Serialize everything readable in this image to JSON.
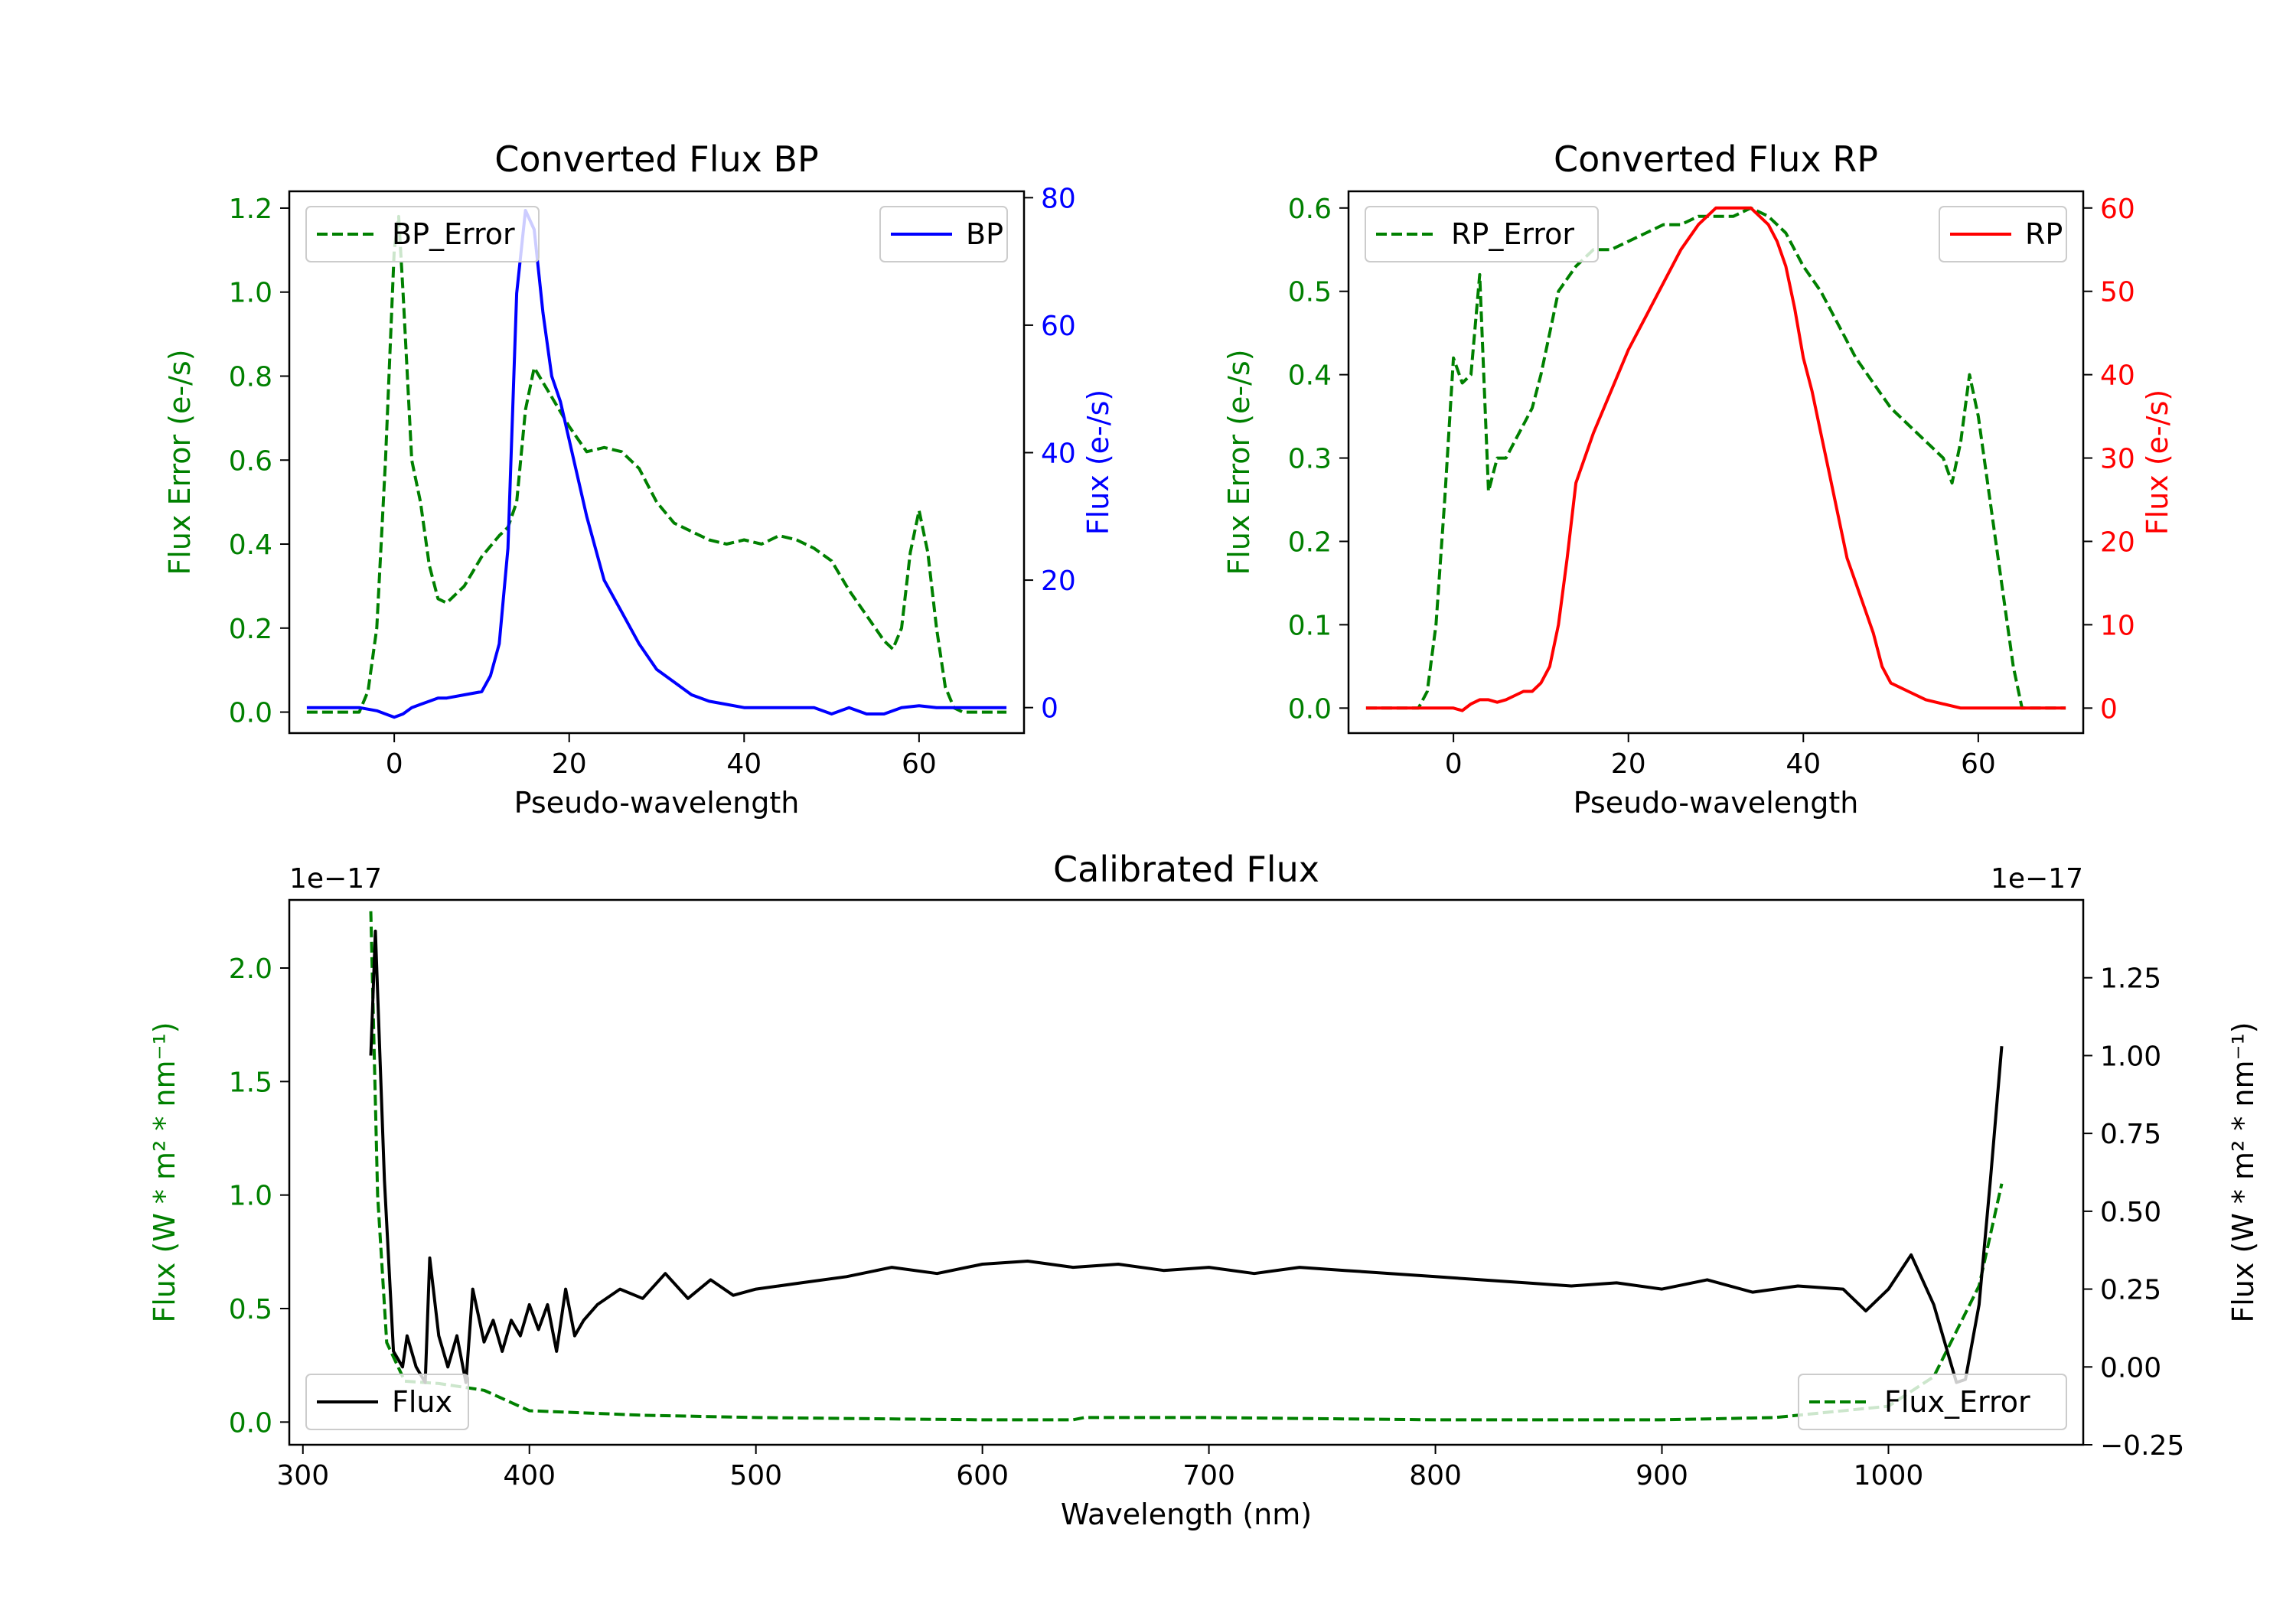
{
  "chart_data": [
    {
      "id": "bp",
      "type": "line",
      "title": "Converted Flux BP",
      "xlabel": "Pseudo-wavelength",
      "xlim": [
        -12,
        72
      ],
      "xticks": [
        0,
        20,
        40,
        60
      ],
      "xtick_labels": [
        "0",
        "20",
        "40",
        "60"
      ],
      "left_axis": {
        "label": "Flux Error (e-/s)",
        "color": "#008000",
        "ylim": [
          -0.05,
          1.24
        ],
        "ticks": [
          0.0,
          0.2,
          0.4,
          0.6,
          0.8,
          1.0,
          1.2
        ],
        "tick_labels": [
          "0.0",
          "0.2",
          "0.4",
          "0.6",
          "0.8",
          "1.0",
          "1.2"
        ]
      },
      "right_axis": {
        "label": "Flux (e-/s)",
        "color": "#0000ff",
        "ylim": [
          -4,
          81
        ],
        "ticks": [
          0,
          20,
          40,
          60,
          80
        ],
        "tick_labels": [
          "0",
          "20",
          "40",
          "60",
          "80"
        ]
      },
      "series": [
        {
          "name": "BP_Error",
          "axis": "left",
          "color": "#008000",
          "style": "dashed",
          "x": [
            -10,
            -6,
            -4,
            -3,
            -2,
            -1,
            0,
            0.5,
            1,
            2,
            3,
            4,
            5,
            6,
            7,
            8,
            10,
            12,
            13,
            14,
            15,
            16,
            18,
            20,
            22,
            24,
            26,
            28,
            30,
            32,
            34,
            36,
            38,
            40,
            42,
            44,
            46,
            48,
            50,
            52,
            54,
            56,
            57,
            58,
            59,
            60,
            61,
            62,
            63,
            64,
            65,
            70
          ],
          "y": [
            0,
            0,
            0,
            0.05,
            0.2,
            0.6,
            1.1,
            1.18,
            1.0,
            0.6,
            0.5,
            0.35,
            0.27,
            0.26,
            0.28,
            0.3,
            0.37,
            0.42,
            0.44,
            0.5,
            0.72,
            0.82,
            0.75,
            0.68,
            0.62,
            0.63,
            0.62,
            0.58,
            0.5,
            0.45,
            0.43,
            0.41,
            0.4,
            0.41,
            0.4,
            0.42,
            0.41,
            0.39,
            0.36,
            0.29,
            0.23,
            0.17,
            0.15,
            0.2,
            0.38,
            0.48,
            0.38,
            0.2,
            0.06,
            0.01,
            0,
            0
          ]
        },
        {
          "name": "BP",
          "axis": "right",
          "color": "#0000ff",
          "style": "solid",
          "x": [
            -10,
            -4,
            -2,
            0,
            1,
            2,
            3,
            4,
            5,
            6,
            8,
            10,
            11,
            12,
            13,
            14,
            15,
            16,
            17,
            18,
            19,
            20,
            22,
            24,
            26,
            28,
            30,
            32,
            34,
            36,
            38,
            40,
            42,
            44,
            46,
            48,
            50,
            52,
            54,
            56,
            58,
            60,
            62,
            65,
            70
          ],
          "y": [
            0,
            0,
            -0.5,
            -1.5,
            -1,
            0,
            0.5,
            1,
            1.5,
            1.5,
            2,
            2.5,
            5,
            10,
            25,
            65,
            78,
            75,
            62,
            52,
            48,
            42,
            30,
            20,
            15,
            10,
            6,
            4,
            2,
            1,
            0.5,
            0,
            0,
            0,
            0,
            0,
            -1,
            0,
            -1,
            -1,
            0,
            0.3,
            0,
            0,
            0
          ]
        }
      ],
      "legends": [
        {
          "position": "upper-left",
          "label": "BP_Error",
          "color": "#008000",
          "style": "dashed"
        },
        {
          "position": "upper-right",
          "label": "BP",
          "color": "#0000ff",
          "style": "solid"
        }
      ]
    },
    {
      "id": "rp",
      "type": "line",
      "title": "Converted Flux RP",
      "xlabel": "Pseudo-wavelength",
      "xlim": [
        -12,
        72
      ],
      "xticks": [
        0,
        20,
        40,
        60
      ],
      "xtick_labels": [
        "0",
        "20",
        "40",
        "60"
      ],
      "left_axis": {
        "label": "Flux Error (e-/s)",
        "color": "#008000",
        "ylim": [
          -0.03,
          0.62
        ],
        "ticks": [
          0.0,
          0.1,
          0.2,
          0.3,
          0.4,
          0.5,
          0.6
        ],
        "tick_labels": [
          "0.0",
          "0.1",
          "0.2",
          "0.3",
          "0.4",
          "0.5",
          "0.6"
        ]
      },
      "right_axis": {
        "label": "Flux (e-/s)",
        "color": "#ff0000",
        "ylim": [
          -3,
          62
        ],
        "ticks": [
          0,
          10,
          20,
          30,
          40,
          50,
          60
        ],
        "tick_labels": [
          "0",
          "10",
          "20",
          "30",
          "40",
          "50",
          "60"
        ]
      },
      "series": [
        {
          "name": "RP_Error",
          "axis": "left",
          "color": "#008000",
          "style": "dashed",
          "x": [
            -10,
            -4,
            -3,
            -2,
            -1,
            0,
            1,
            2,
            3,
            4,
            5,
            6,
            7,
            8,
            9,
            10,
            11,
            12,
            14,
            16,
            18,
            20,
            22,
            24,
            26,
            28,
            30,
            32,
            34,
            36,
            38,
            40,
            42,
            44,
            46,
            48,
            50,
            52,
            54,
            56,
            57,
            58,
            59,
            60,
            62,
            64,
            65,
            70
          ],
          "y": [
            0,
            0,
            0.02,
            0.1,
            0.25,
            0.42,
            0.39,
            0.4,
            0.52,
            0.26,
            0.3,
            0.3,
            0.32,
            0.34,
            0.36,
            0.4,
            0.45,
            0.5,
            0.53,
            0.55,
            0.55,
            0.56,
            0.57,
            0.58,
            0.58,
            0.59,
            0.59,
            0.59,
            0.6,
            0.59,
            0.57,
            0.53,
            0.5,
            0.46,
            0.42,
            0.39,
            0.36,
            0.34,
            0.32,
            0.3,
            0.27,
            0.32,
            0.4,
            0.35,
            0.2,
            0.05,
            0,
            0
          ],
          "y_note": "values approx"
        },
        {
          "name": "RP",
          "axis": "right",
          "color": "#ff0000",
          "style": "solid",
          "x": [
            -10,
            -4,
            0,
            1,
            2,
            3,
            4,
            5,
            6,
            7,
            8,
            9,
            10,
            11,
            12,
            13,
            14,
            16,
            18,
            20,
            22,
            24,
            26,
            28,
            30,
            32,
            34,
            36,
            37,
            38,
            39,
            40,
            41,
            42,
            43,
            44,
            45,
            46,
            47,
            48,
            49,
            50,
            52,
            54,
            56,
            58,
            60,
            62,
            65,
            70
          ],
          "y": [
            0,
            0,
            0,
            -0.3,
            0.5,
            1,
            1,
            0.7,
            1,
            1.5,
            2,
            2,
            3,
            5,
            10,
            18,
            27,
            33,
            38,
            43,
            47,
            51,
            55,
            58,
            60,
            60,
            60,
            58,
            56,
            53,
            48,
            42,
            38,
            33,
            28,
            23,
            18,
            15,
            12,
            9,
            5,
            3,
            2,
            1,
            0.5,
            0,
            0,
            0,
            0,
            0
          ]
        }
      ],
      "legends": [
        {
          "position": "upper-left",
          "label": "RP_Error",
          "color": "#008000",
          "style": "dashed"
        },
        {
          "position": "upper-right",
          "label": "RP",
          "color": "#ff0000",
          "style": "solid"
        }
      ]
    },
    {
      "id": "cal",
      "type": "line",
      "title": "Calibrated Flux",
      "xlabel": "Wavelength (nm)",
      "xlim": [
        294,
        1086
      ],
      "xticks": [
        300,
        400,
        500,
        600,
        700,
        800,
        900,
        1000
      ],
      "xtick_labels": [
        "300",
        "400",
        "500",
        "600",
        "700",
        "800",
        "900",
        "1000"
      ],
      "left_axis": {
        "label": "Flux (W * m² * nm⁻¹)",
        "color": "#008000",
        "offset_text": "1e−17",
        "ylim": [
          -0.1,
          2.3
        ],
        "ticks": [
          0.0,
          0.5,
          1.0,
          1.5,
          2.0
        ],
        "tick_labels": [
          "0.0",
          "0.5",
          "1.0",
          "1.5",
          "2.0"
        ]
      },
      "right_axis": {
        "label": "Flux (W * m² * nm⁻¹)",
        "color": "#000000",
        "offset_text": "1e−17",
        "ylim": [
          -0.25,
          1.5
        ],
        "ticks": [
          -0.25,
          0.0,
          0.25,
          0.5,
          0.75,
          1.0,
          1.25
        ],
        "tick_labels": [
          "−0.25",
          "0.00",
          "0.25",
          "0.50",
          "0.75",
          "1.00",
          "1.25"
        ]
      },
      "series": [
        {
          "name": "Flux_Error",
          "axis": "left",
          "color": "#008000",
          "style": "dashed",
          "x": [
            330,
            333,
            337,
            345,
            360,
            380,
            400,
            450,
            500,
            600,
            640,
            645,
            700,
            800,
            900,
            950,
            1000,
            1020,
            1040,
            1050
          ],
          "y": [
            2.25,
            1.0,
            0.35,
            0.18,
            0.17,
            0.14,
            0.05,
            0.03,
            0.02,
            0.01,
            0.01,
            0.02,
            0.02,
            0.01,
            0.01,
            0.02,
            0.07,
            0.2,
            0.6,
            1.05
          ]
        },
        {
          "name": "Flux",
          "axis": "right",
          "color": "#000000",
          "style": "solid",
          "x": [
            330,
            332,
            336,
            340,
            344,
            346,
            350,
            354,
            356,
            360,
            364,
            368,
            372,
            375,
            380,
            384,
            388,
            392,
            396,
            400,
            404,
            408,
            412,
            416,
            420,
            424,
            430,
            440,
            450,
            460,
            470,
            480,
            490,
            500,
            520,
            540,
            560,
            580,
            600,
            620,
            640,
            660,
            680,
            700,
            720,
            740,
            760,
            780,
            800,
            820,
            840,
            860,
            880,
            900,
            920,
            940,
            960,
            980,
            990,
            1000,
            1010,
            1020,
            1030,
            1034,
            1040,
            1045,
            1050
          ],
          "y": [
            1.0,
            1.4,
            0.6,
            0.05,
            0.0,
            0.1,
            0.0,
            -0.05,
            0.35,
            0.1,
            0.0,
            0.1,
            -0.05,
            0.25,
            0.08,
            0.15,
            0.05,
            0.15,
            0.1,
            0.2,
            0.12,
            0.2,
            0.05,
            0.25,
            0.1,
            0.15,
            0.2,
            0.25,
            0.22,
            0.3,
            0.22,
            0.28,
            0.23,
            0.25,
            0.27,
            0.29,
            0.32,
            0.3,
            0.33,
            0.34,
            0.32,
            0.33,
            0.31,
            0.32,
            0.3,
            0.32,
            0.31,
            0.3,
            0.29,
            0.28,
            0.27,
            0.26,
            0.27,
            0.25,
            0.28,
            0.24,
            0.26,
            0.25,
            0.18,
            0.25,
            0.36,
            0.2,
            -0.05,
            -0.04,
            0.2,
            0.6,
            1.03
          ]
        }
      ],
      "legends": [
        {
          "position": "lower-left",
          "label": "Flux",
          "color": "#000000",
          "style": "solid"
        },
        {
          "position": "lower-right",
          "label": "Flux_Error",
          "color": "#008000",
          "style": "dashed"
        }
      ]
    }
  ]
}
